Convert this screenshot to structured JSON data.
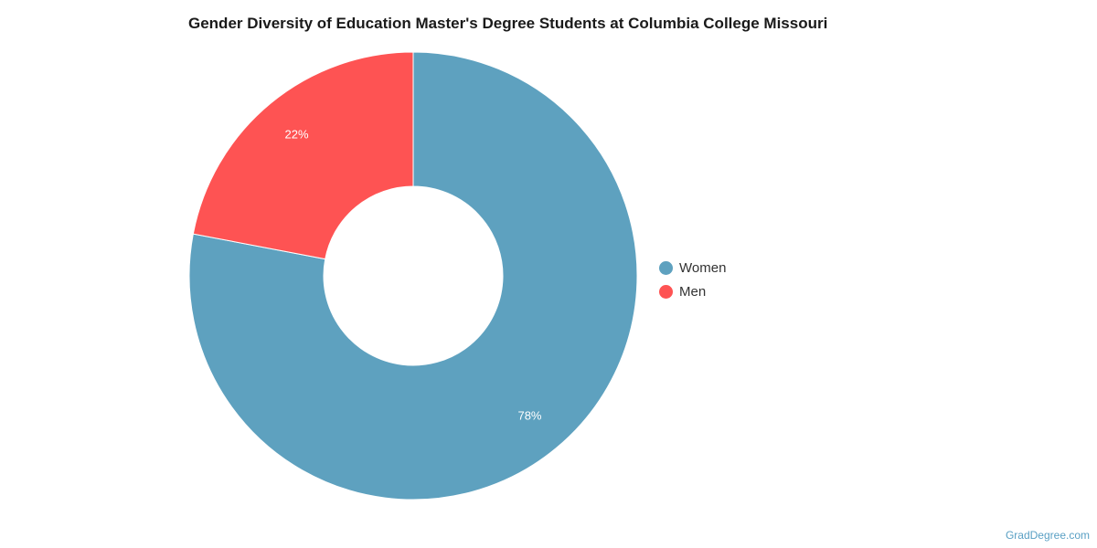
{
  "chart_data": {
    "type": "pie",
    "variant": "donut",
    "title": "Gender Diversity of Education Master's Degree Students at Columbia College Missouri",
    "categories": [
      "Women",
      "Men"
    ],
    "values": [
      78,
      22
    ],
    "data_labels": [
      "78%",
      "22%"
    ],
    "colors": [
      "#5ea1bf",
      "#fe5353"
    ],
    "legend_position": "right"
  },
  "watermark": "GradDegree.com"
}
